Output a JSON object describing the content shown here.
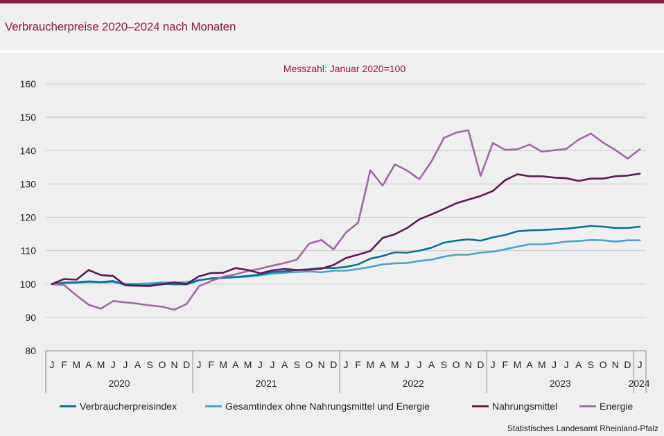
{
  "header": {
    "title": "Verbraucherpreise 2020–2024 nach Monaten"
  },
  "source": "Statistisches Landesamt Rheinland-Pfalz",
  "colors": {
    "Verbraucherpreisindex": "#0e6f92",
    "Gesamtindex ohne Nahrungsmittel und Energie": "#4aa3c6",
    "Nahrungsmittel": "#5b1b53",
    "Energie": "#9d6aa0"
  },
  "chart_data": {
    "type": "line",
    "subtitle": "Messzahl:  Januar  2020=100",
    "ylim": [
      80,
      160
    ],
    "yticks": [
      80,
      90,
      100,
      110,
      120,
      130,
      140,
      150,
      160
    ],
    "month_labels": [
      "J",
      "F",
      "M",
      "A",
      "M",
      "J",
      "J",
      "A",
      "S",
      "O",
      "N",
      "D",
      "J",
      "F",
      "M",
      "A",
      "M",
      "J",
      "J",
      "A",
      "S",
      "O",
      "N",
      "D",
      "J",
      "F",
      "M",
      "A",
      "M",
      "J",
      "J",
      "A",
      "S",
      "O",
      "N",
      "D",
      "J",
      "F",
      "M",
      "A",
      "M",
      "J",
      "J",
      "A",
      "S",
      "O",
      "N",
      "D",
      "J"
    ],
    "years": [
      "2020",
      "2021",
      "2022",
      "2023",
      "2024"
    ],
    "series": [
      {
        "name": "Verbraucherpreisindex",
        "values": [
          100,
          100.4,
          100.5,
          100.8,
          100.6,
          100.9,
          99.7,
          99.6,
          99.6,
          100.1,
          99.9,
          99.9,
          101.1,
          101.7,
          101.9,
          102.1,
          102.4,
          102.9,
          103.6,
          103.8,
          104.2,
          104.4,
          104.8,
          104.8,
          105.1,
          105.9,
          107.6,
          108.4,
          109.5,
          109.4,
          110.0,
          110.9,
          112.4,
          113.0,
          113.4,
          113.0,
          114.0,
          114.7,
          115.8,
          116.1,
          116.2,
          116.4,
          116.6,
          117.0,
          117.4,
          117.2,
          116.8,
          116.8,
          117.2
        ]
      },
      {
        "name": "Gesamtindex ohne Nahrungsmittel und Energie",
        "values": [
          100,
          100.3,
          100.4,
          100.6,
          100.5,
          100.6,
          100.1,
          100.1,
          100.2,
          100.5,
          100.4,
          100.6,
          101.2,
          101.6,
          101.8,
          102.0,
          102.2,
          102.6,
          103.1,
          103.4,
          103.6,
          103.8,
          103.5,
          104.0,
          104.0,
          104.5,
          105.1,
          105.9,
          106.2,
          106.3,
          106.9,
          107.3,
          108.2,
          108.8,
          108.8,
          109.4,
          109.7,
          110.4,
          111.2,
          111.9,
          111.9,
          112.2,
          112.7,
          112.9,
          113.2,
          113.1,
          112.7,
          113.1,
          113.1
        ]
      },
      {
        "name": "Nahrungsmittel",
        "values": [
          100,
          101.5,
          101.3,
          104.2,
          102.7,
          102.4,
          99.6,
          99.5,
          99.4,
          99.9,
          100.5,
          100.0,
          102.3,
          103.3,
          103.4,
          104.8,
          104.2,
          103.2,
          104.1,
          104.5,
          104.2,
          104.3,
          104.6,
          105.7,
          107.8,
          108.8,
          109.9,
          113.8,
          114.9,
          116.8,
          119.4,
          120.9,
          122.5,
          124.2,
          125.3,
          126.4,
          127.9,
          131.1,
          132.9,
          132.3,
          132.3,
          131.9,
          131.7,
          130.9,
          131.6,
          131.6,
          132.3,
          132.5,
          133.1
        ]
      },
      {
        "name": "Energie",
        "values": [
          100,
          99.7,
          96.6,
          93.8,
          92.6,
          94.9,
          94.5,
          94.1,
          93.6,
          93.2,
          92.3,
          94.0,
          99.3,
          100.9,
          102.2,
          102.9,
          103.9,
          104.6,
          105.5,
          106.3,
          107.3,
          112.1,
          113.2,
          110.4,
          115.4,
          118.4,
          134.1,
          129.5,
          135.9,
          134.0,
          131.4,
          136.8,
          143.8,
          145.4,
          146.1,
          132.4,
          142.3,
          140.2,
          140.4,
          141.8,
          139.7,
          140.1,
          140.5,
          143.3,
          145.1,
          142.4,
          140.2,
          137.6,
          140.4
        ]
      }
    ]
  }
}
